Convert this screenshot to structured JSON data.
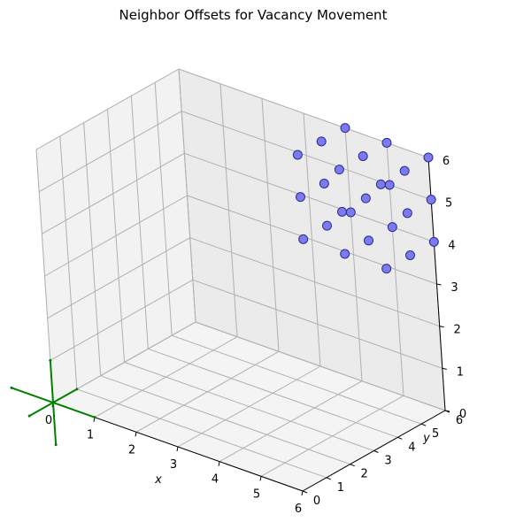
{
  "chart_data": {
    "type": "scatter",
    "projection": "3d",
    "title": "Neighbor Offsets for Vacancy Movement",
    "xlabel": "x",
    "ylabel": "y",
    "zlabel": "",
    "xlim": [
      0,
      6
    ],
    "ylim": [
      0,
      6
    ],
    "zlim": [
      0,
      6
    ],
    "xticks": [
      "0",
      "1",
      "2",
      "3",
      "4",
      "5",
      "6"
    ],
    "yticks": [
      "0",
      "1",
      "2",
      "3",
      "4",
      "5",
      "6"
    ],
    "zticks": [
      "0",
      "1",
      "2",
      "3",
      "4",
      "5",
      "6"
    ],
    "grid": true,
    "marker_color": "#7b7bef",
    "marker_edge": "#2b2b8f",
    "origin_axes_color": "#008000",
    "origin_axes": [
      {
        "from": [
          -1,
          0,
          0
        ],
        "to": [
          1,
          0,
          0
        ]
      },
      {
        "from": [
          0,
          -1,
          0
        ],
        "to": [
          0,
          1,
          0
        ]
      },
      {
        "from": [
          0,
          0,
          -1
        ],
        "to": [
          0,
          0,
          1
        ]
      }
    ],
    "points": [
      {
        "x": 4,
        "y": 4,
        "z": 4
      },
      {
        "x": 4,
        "y": 4,
        "z": 6
      },
      {
        "x": 4,
        "y": 6,
        "z": 4
      },
      {
        "x": 4,
        "y": 6,
        "z": 6
      },
      {
        "x": 6,
        "y": 4,
        "z": 4
      },
      {
        "x": 6,
        "y": 4,
        "z": 6
      },
      {
        "x": 6,
        "y": 6,
        "z": 4
      },
      {
        "x": 6,
        "y": 6,
        "z": 6
      },
      {
        "x": 5,
        "y": 5,
        "z": 5
      },
      {
        "x": 5,
        "y": 4,
        "z": 5
      },
      {
        "x": 5,
        "y": 6,
        "z": 5
      },
      {
        "x": 4,
        "y": 5,
        "z": 5
      },
      {
        "x": 6,
        "y": 5,
        "z": 5
      },
      {
        "x": 5,
        "y": 5,
        "z": 4
      },
      {
        "x": 5,
        "y": 5,
        "z": 6
      },
      {
        "x": 4,
        "y": 5,
        "z": 4
      },
      {
        "x": 4,
        "y": 5,
        "z": 6
      },
      {
        "x": 6,
        "y": 5,
        "z": 4
      },
      {
        "x": 6,
        "y": 5,
        "z": 6
      },
      {
        "x": 5,
        "y": 4,
        "z": 4
      },
      {
        "x": 5,
        "y": 4,
        "z": 6
      },
      {
        "x": 5,
        "y": 6,
        "z": 4
      },
      {
        "x": 5,
        "y": 6,
        "z": 6
      },
      {
        "x": 4,
        "y": 4,
        "z": 5
      },
      {
        "x": 6,
        "y": 6,
        "z": 5
      }
    ]
  }
}
